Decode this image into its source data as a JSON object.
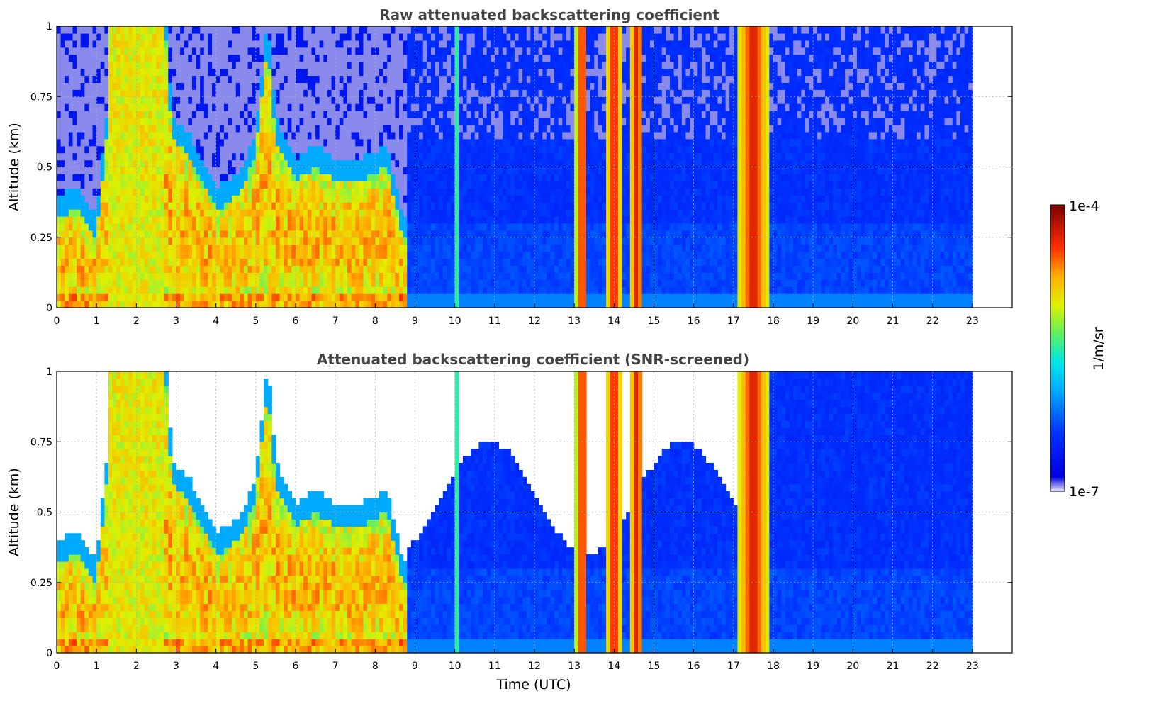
{
  "chart_data": [
    {
      "type": "heatmap",
      "title": "Raw attenuated backscattering coefficient",
      "xlabel": "",
      "ylabel": "Altitude (km)",
      "xlim": [
        0,
        24
      ],
      "ylim": [
        0,
        1
      ],
      "x_ticks": [
        "0",
        "1",
        "2",
        "3",
        "4",
        "5",
        "6",
        "7",
        "8",
        "9",
        "10",
        "11",
        "12",
        "13",
        "14",
        "15",
        "16",
        "17",
        "18",
        "19",
        "20",
        "21",
        "22",
        "23"
      ],
      "y_ticks": [
        "0",
        "0.25",
        "0.5",
        "0.75",
        "1"
      ],
      "grid": true,
      "data_end_time": 23,
      "cloud_bands_utc": [
        [
          13.05,
          13.35
        ],
        [
          13.8,
          14.2
        ],
        [
          14.4,
          14.75
        ],
        [
          17.1,
          17.9
        ]
      ],
      "aerosol_layer_top_km": [
        [
          0,
          0.3
        ],
        [
          1,
          0.25
        ],
        [
          1.3,
          1.0
        ],
        [
          3,
          0.55
        ],
        [
          4,
          0.35
        ],
        [
          5,
          0.5
        ],
        [
          5.5,
          0.65
        ],
        [
          6,
          0.45
        ],
        [
          7,
          0.4
        ],
        [
          8,
          0.55
        ],
        [
          8.7,
          0.2
        ]
      ],
      "screened": false
    },
    {
      "type": "heatmap",
      "title": "Attenuated backscattering coefficient (SNR-screened)",
      "xlabel": "Time (UTC)",
      "ylabel": "Altitude (km)",
      "xlim": [
        0,
        24
      ],
      "ylim": [
        0,
        1
      ],
      "x_ticks": [
        "0",
        "1",
        "2",
        "3",
        "4",
        "5",
        "6",
        "7",
        "8",
        "9",
        "10",
        "11",
        "12",
        "13",
        "14",
        "15",
        "16",
        "17",
        "18",
        "19",
        "20",
        "21",
        "22",
        "23"
      ],
      "y_ticks": [
        "0",
        "0.25",
        "0.5",
        "0.75",
        "1"
      ],
      "grid": true,
      "data_end_time": 23,
      "cloud_bands_utc": [
        [
          13.05,
          13.35
        ],
        [
          13.8,
          14.2
        ],
        [
          14.4,
          14.75
        ],
        [
          17.1,
          17.9
        ]
      ],
      "screened": true
    }
  ],
  "colorbar": {
    "label": "1/m/sr",
    "max_label": "1e-4",
    "min_label": "1e-7",
    "scale": "log",
    "colormap": "jet",
    "min": 1e-07,
    "max": 0.0001
  }
}
